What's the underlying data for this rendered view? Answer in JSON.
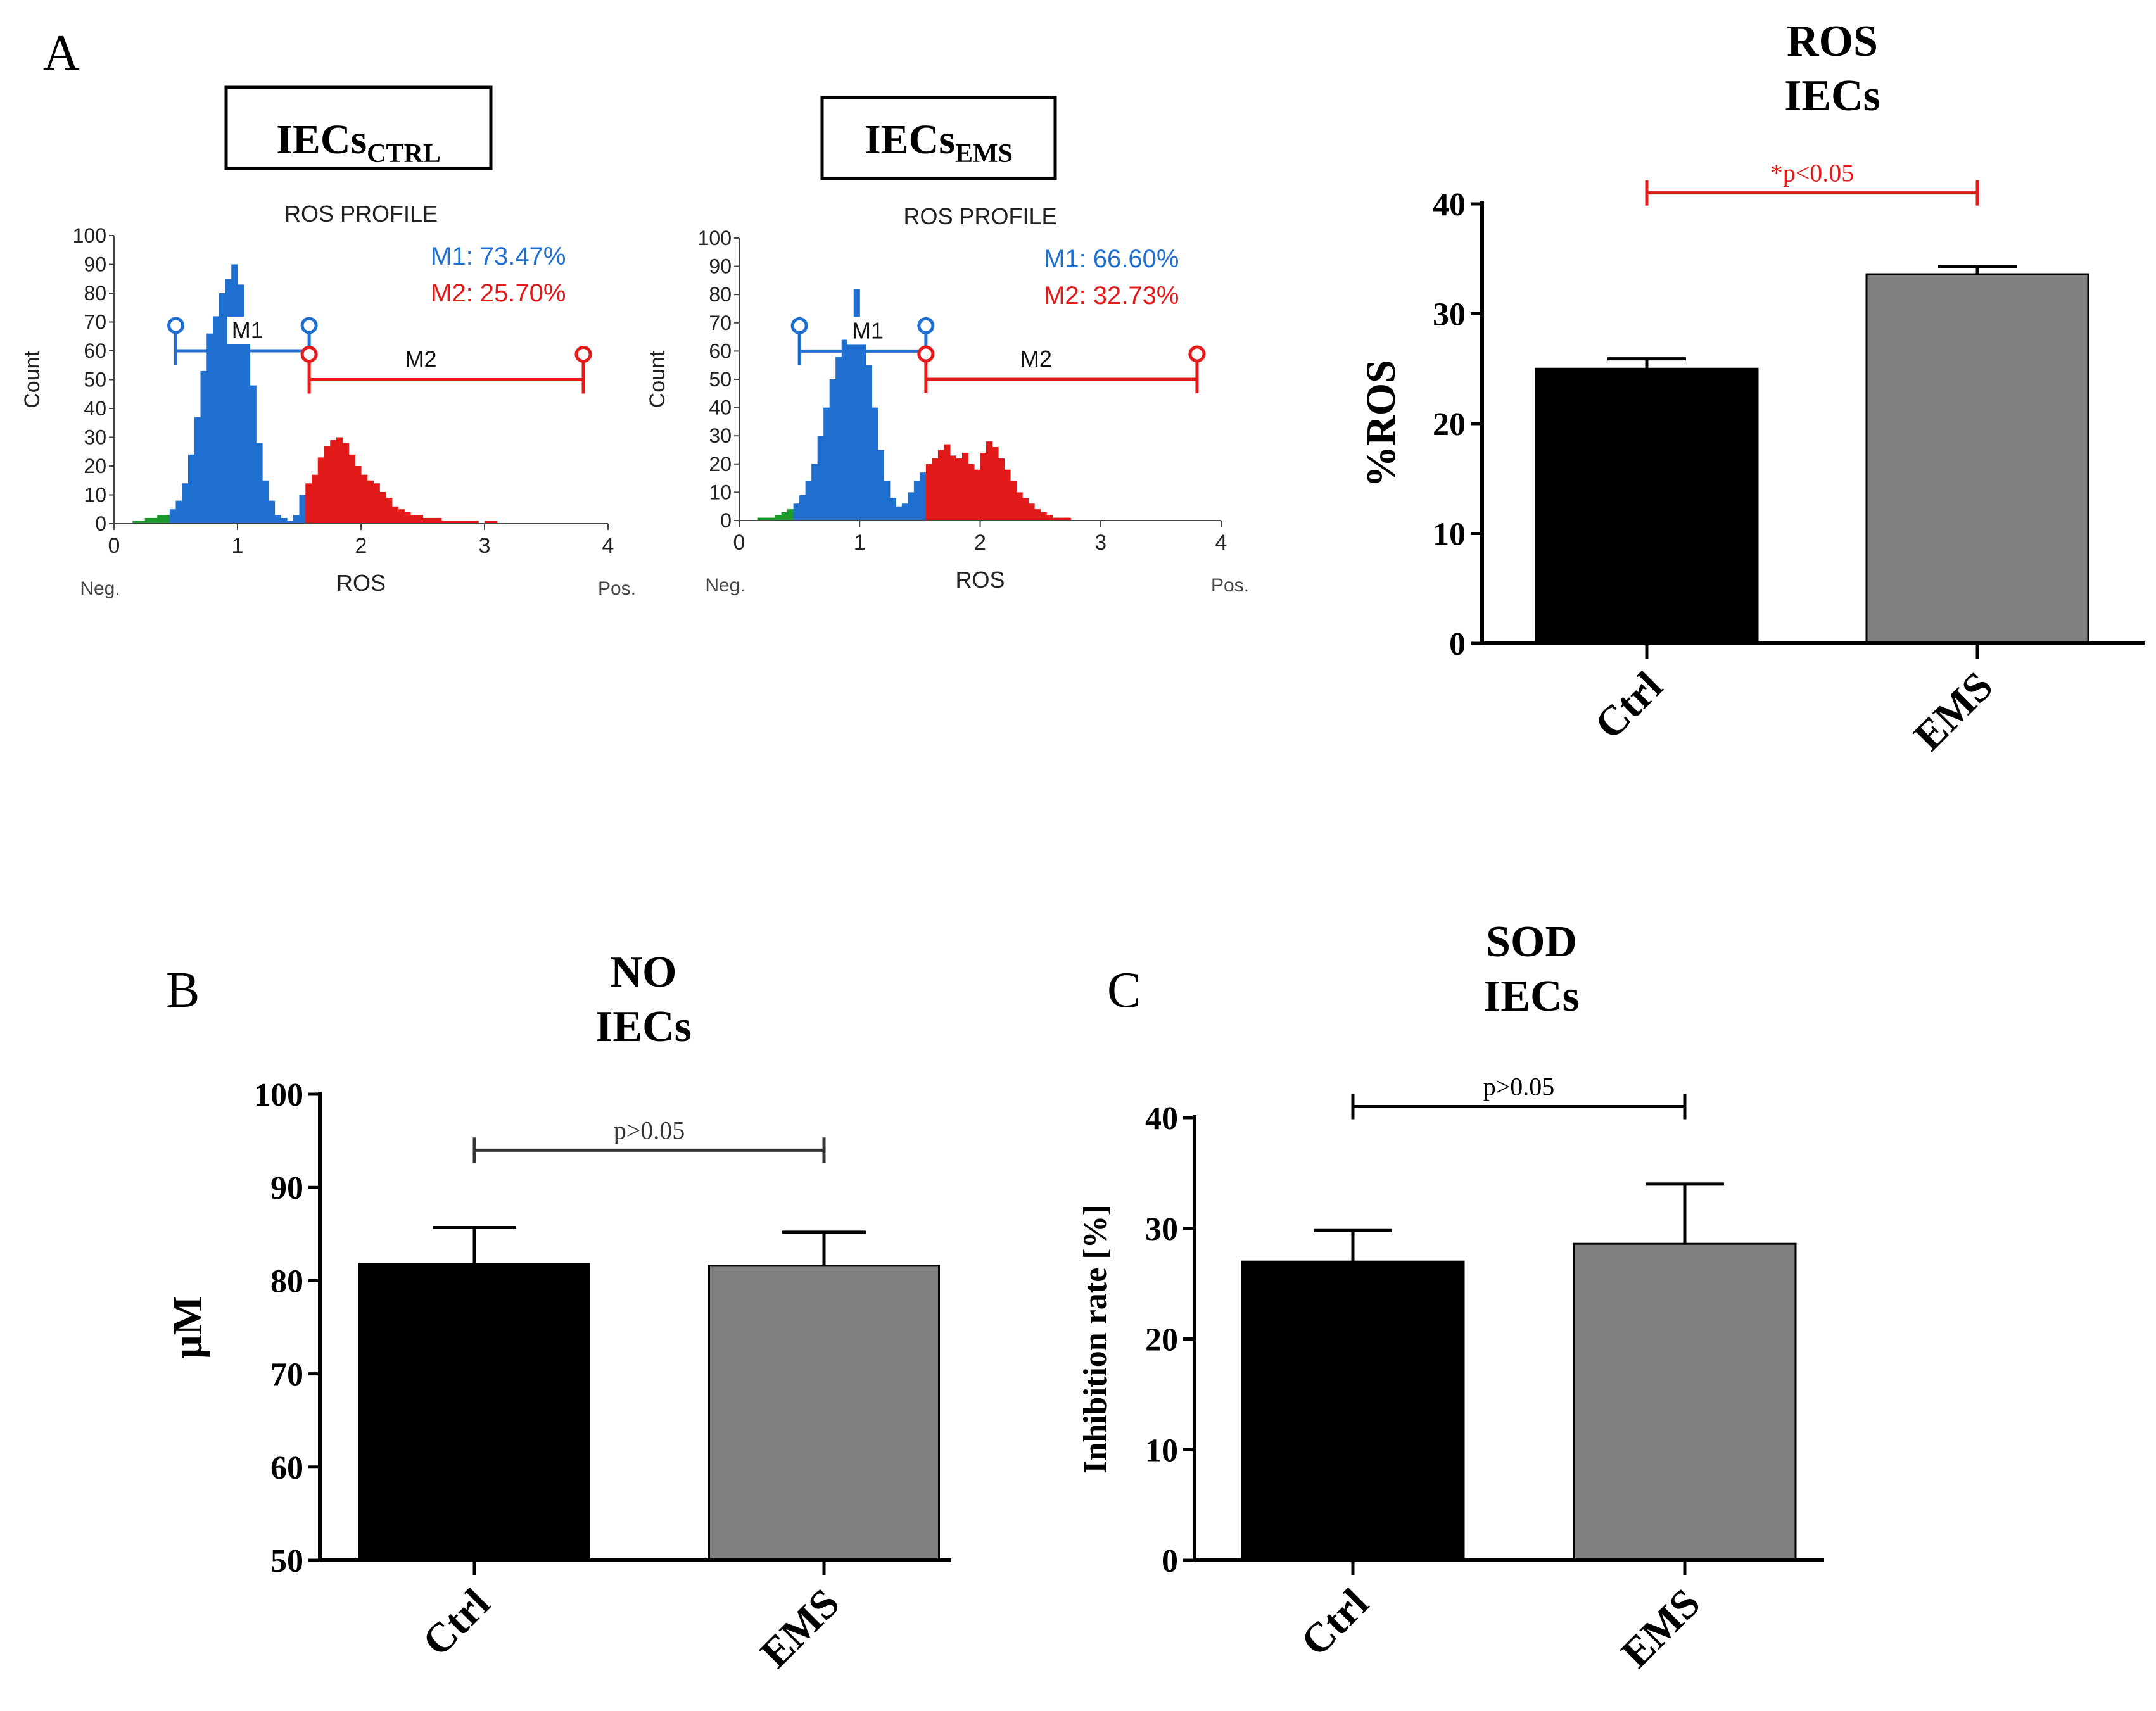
{
  "panel_labels": {
    "a": "A",
    "b": "B",
    "c": "C"
  },
  "chart_data": [
    {
      "id": "hist_ctrl",
      "type": "histogram",
      "group_box": {
        "main": "IECs",
        "sub": "CTRL"
      },
      "title": "ROS PROFILE",
      "xlabel": "ROS",
      "ylabel": "Count",
      "x_left_label": "Neg.",
      "x_right_label": "Pos.",
      "xlim": [
        0,
        4
      ],
      "ylim": [
        0,
        100
      ],
      "xticks": [
        "0",
        "1",
        "2",
        "3",
        "4"
      ],
      "yticks": [
        "0",
        "10",
        "20",
        "30",
        "40",
        "50",
        "60",
        "70",
        "80",
        "90",
        "100"
      ],
      "bins": {
        "x": [
          0.05,
          0.1,
          0.15,
          0.2,
          0.25,
          0.3,
          0.35,
          0.4,
          0.45,
          0.5,
          0.55,
          0.6,
          0.65,
          0.7,
          0.75,
          0.8,
          0.85,
          0.9,
          0.95,
          1.0,
          1.05,
          1.1,
          1.15,
          1.2,
          1.25,
          1.3,
          1.35,
          1.4,
          1.45,
          1.5,
          1.55,
          1.6,
          1.65,
          1.7,
          1.75,
          1.8,
          1.85,
          1.9,
          1.95,
          2.0,
          2.05,
          2.1,
          2.15,
          2.2,
          2.25,
          2.3,
          2.35,
          2.4,
          2.45,
          2.5,
          2.55,
          2.6,
          2.65,
          2.7,
          2.75,
          2.8,
          2.85,
          2.9,
          2.95,
          3.0,
          3.05,
          3.1,
          3.15,
          3.2,
          3.25,
          3.3,
          3.35,
          3.4,
          3.45,
          3.5,
          3.55,
          3.6
        ],
        "counts": [
          0,
          0,
          0,
          1,
          1,
          2,
          2,
          3,
          3,
          5,
          8,
          14,
          24,
          37,
          53,
          66,
          72,
          80,
          85,
          90,
          83,
          68,
          48,
          28,
          15,
          8,
          3,
          2,
          1,
          3,
          10,
          14,
          17,
          23,
          27,
          29,
          30,
          28,
          24,
          20,
          17,
          15,
          14,
          11,
          9,
          6,
          5,
          4,
          3,
          3,
          2,
          2,
          2,
          1,
          1,
          1,
          1,
          1,
          1,
          0,
          1,
          1,
          0,
          0,
          0,
          0,
          0,
          0,
          0,
          0,
          0,
          0
        ],
        "zones": [
          0,
          0,
          0,
          0,
          0,
          0,
          0,
          0,
          0,
          1,
          1,
          1,
          1,
          1,
          1,
          1,
          1,
          1,
          1,
          1,
          1,
          1,
          1,
          1,
          1,
          1,
          1,
          1,
          1,
          1,
          1,
          2,
          2,
          2,
          2,
          2,
          2,
          2,
          2,
          2,
          2,
          2,
          2,
          2,
          2,
          2,
          2,
          2,
          2,
          2,
          2,
          2,
          2,
          2,
          2,
          2,
          2,
          2,
          2,
          2,
          2,
          2,
          2,
          2,
          2,
          2,
          2,
          2,
          2,
          2,
          2,
          2
        ]
      },
      "markers": [
        {
          "name": "M1",
          "start": 0.5,
          "end": 1.58,
          "level": 60,
          "color": "#1f6fd0"
        },
        {
          "name": "M2",
          "start": 1.58,
          "end": 3.8,
          "level": 50,
          "color": "#e31a1a"
        }
      ],
      "stats": [
        {
          "label": "M1: 73.47%",
          "color": "#1f6fd0"
        },
        {
          "label": "M2: 25.70%",
          "color": "#e31a1a"
        }
      ]
    },
    {
      "id": "hist_ems",
      "type": "histogram",
      "group_box": {
        "main": "IECs",
        "sub": "EMS"
      },
      "title": "ROS PROFILE",
      "xlabel": "ROS",
      "ylabel": "Count",
      "x_left_label": "Neg.",
      "x_right_label": "Pos.",
      "xlim": [
        0,
        4
      ],
      "ylim": [
        0,
        100
      ],
      "xticks": [
        "0",
        "1",
        "2",
        "3",
        "4"
      ],
      "yticks": [
        "0",
        "10",
        "20",
        "30",
        "40",
        "50",
        "60",
        "70",
        "80",
        "90",
        "100"
      ],
      "bins": {
        "x": [
          0.05,
          0.1,
          0.15,
          0.2,
          0.25,
          0.3,
          0.35,
          0.4,
          0.45,
          0.5,
          0.55,
          0.6,
          0.65,
          0.7,
          0.75,
          0.8,
          0.85,
          0.9,
          0.95,
          1.0,
          1.05,
          1.1,
          1.15,
          1.2,
          1.25,
          1.3,
          1.35,
          1.4,
          1.45,
          1.5,
          1.55,
          1.6,
          1.65,
          1.7,
          1.75,
          1.8,
          1.85,
          1.9,
          1.95,
          2.0,
          2.05,
          2.1,
          2.15,
          2.2,
          2.25,
          2.3,
          2.35,
          2.4,
          2.45,
          2.5,
          2.55,
          2.6,
          2.65,
          2.7,
          2.75,
          2.8,
          2.85,
          2.9,
          2.95,
          3.0,
          3.05,
          3.1,
          3.15,
          3.2,
          3.25,
          3.3,
          3.35,
          3.4,
          3.45,
          3.5,
          3.55,
          3.6
        ],
        "counts": [
          0,
          0,
          0,
          1,
          1,
          1,
          2,
          3,
          4,
          6,
          9,
          14,
          20,
          30,
          40,
          50,
          58,
          64,
          68,
          82,
          70,
          55,
          40,
          25,
          14,
          8,
          5,
          6,
          10,
          14,
          17,
          20,
          22,
          25,
          27,
          23,
          22,
          24,
          20,
          18,
          24,
          28,
          26,
          22,
          18,
          14,
          10,
          8,
          6,
          4,
          3,
          2,
          1,
          1,
          1,
          0,
          0,
          0,
          0,
          0,
          0,
          0,
          0,
          0,
          0,
          0,
          0,
          0,
          0,
          0,
          0,
          0
        ],
        "zones": [
          0,
          0,
          0,
          0,
          0,
          0,
          0,
          0,
          0,
          1,
          1,
          1,
          1,
          1,
          1,
          1,
          1,
          1,
          1,
          1,
          1,
          1,
          1,
          1,
          1,
          1,
          1,
          1,
          1,
          1,
          1,
          2,
          2,
          2,
          2,
          2,
          2,
          2,
          2,
          2,
          2,
          2,
          2,
          2,
          2,
          2,
          2,
          2,
          2,
          2,
          2,
          2,
          2,
          2,
          2,
          2,
          2,
          2,
          2,
          2,
          2,
          2,
          2,
          2,
          2,
          2,
          2,
          2,
          2,
          2,
          2,
          2
        ]
      },
      "markers": [
        {
          "name": "M1",
          "start": 0.5,
          "end": 1.55,
          "level": 60,
          "color": "#1f6fd0"
        },
        {
          "name": "M2",
          "start": 1.55,
          "end": 3.8,
          "level": 50,
          "color": "#e31a1a"
        }
      ],
      "stats": [
        {
          "label": "M1: 66.60%",
          "color": "#1f6fd0"
        },
        {
          "label": "M2: 32.73%",
          "color": "#e31a1a"
        }
      ]
    },
    {
      "id": "bar_ros",
      "type": "bar",
      "title_lines": [
        "ROS",
        "IECs"
      ],
      "ylabel": "%ROS",
      "ylim": [
        0,
        40
      ],
      "yticks": [
        "0",
        "10",
        "20",
        "30",
        "40"
      ],
      "categories": [
        "Ctrl",
        "EMS"
      ],
      "values": [
        25.0,
        33.6
      ],
      "errors": [
        0.9,
        0.7
      ],
      "colors": [
        "#000000",
        "#808080"
      ],
      "significance": {
        "text": "*p<0.05",
        "level": 41,
        "color": "#e31a1a"
      }
    },
    {
      "id": "bar_no",
      "type": "bar",
      "title_lines": [
        "NO",
        "IECs"
      ],
      "ylabel": "μM",
      "ylim": [
        50,
        100
      ],
      "yticks": [
        "50",
        "60",
        "70",
        "80",
        "90",
        "100"
      ],
      "categories": [
        "Ctrl",
        "EMS"
      ],
      "values": [
        81.8,
        81.6
      ],
      "errors": [
        3.9,
        3.6
      ],
      "colors": [
        "#000000",
        "#808080"
      ],
      "significance": {
        "text": "p>0.05",
        "level": 94,
        "color": "#333333"
      }
    },
    {
      "id": "bar_sod",
      "type": "bar",
      "title_lines": [
        "SOD",
        "IECs"
      ],
      "ylabel": "Inhibition rate [%]",
      "ylim": [
        0,
        40
      ],
      "yticks": [
        "0",
        "10",
        "20",
        "30",
        "40"
      ],
      "categories": [
        "Ctrl",
        "EMS"
      ],
      "values": [
        27.0,
        28.6
      ],
      "errors": [
        2.8,
        5.4
      ],
      "colors": [
        "#000000",
        "#808080"
      ],
      "significance": {
        "text": "p>0.05",
        "level": 41,
        "color": "#000000"
      }
    }
  ]
}
